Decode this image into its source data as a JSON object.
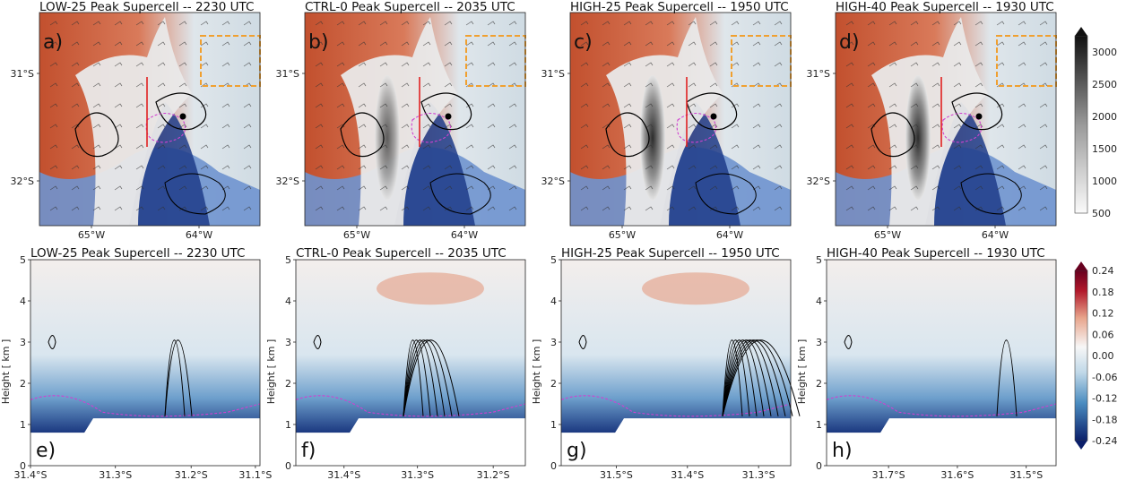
{
  "figure": {
    "top_row_titles": [
      "LOW-25 Peak Supercell -- 2230 UTC",
      "CTRL-0 Peak Supercell -- 2035 UTC",
      "HIGH-25 Peak Supercell -- 1950 UTC",
      "HIGH-40 Peak Supercell -- 1930 UTC"
    ],
    "bottom_row_titles": [
      "LOW-25 Peak Supercell -- 2230 UTC",
      "CTRL-0 Peak Supercell -- 2035 UTC",
      "HIGH-25 Peak Supercell -- 1950 UTC",
      "HIGH-40 Peak Supercell -- 1930 UTC"
    ],
    "top_panel_letters": [
      "a)",
      "b)",
      "c)",
      "d)"
    ],
    "bottom_panel_letters": [
      "e)",
      "f)",
      "g)",
      "h)"
    ],
    "colors": {
      "warm": "#c2502e",
      "cool_light": "#dde6ec",
      "blue_dark": "#1f3c8a",
      "blue_mid": "#4a6fc0",
      "highlight_box": "#f0a030",
      "section_line": "#e02020",
      "dashed_contour": "#d040d0"
    }
  },
  "chart_data": [
    {
      "type": "heatmap",
      "panel": "a)",
      "title": "LOW-25 Peak Supercell -- 2230 UTC",
      "xticks": [
        "65°W",
        "64°W"
      ],
      "yticks": [
        "31°S",
        "32°S"
      ]
    },
    {
      "type": "heatmap",
      "panel": "b)",
      "title": "CTRL-0 Peak Supercell -- 2035 UTC",
      "xticks": [
        "65°W",
        "64°W"
      ],
      "yticks": [
        "31°S",
        "32°S"
      ]
    },
    {
      "type": "heatmap",
      "panel": "c)",
      "title": "HIGH-25 Peak Supercell -- 1950 UTC",
      "xticks": [
        "65°W",
        "64°W"
      ],
      "yticks": [
        "31°S",
        "32°S"
      ]
    },
    {
      "type": "heatmap",
      "panel": "d)",
      "title": "HIGH-40 Peak Supercell -- 1930 UTC",
      "xticks": [
        "65°W",
        "64°W"
      ],
      "yticks": [
        "31°S",
        "32°S"
      ]
    },
    {
      "type": "heatmap",
      "panel": "e)",
      "title": "LOW-25 Peak Supercell -- 2230 UTC",
      "ylabel": "Height [ km ]",
      "ylim": [
        0,
        5
      ],
      "yticks": [
        "0",
        "1",
        "2",
        "3",
        "4",
        "5"
      ],
      "xticks": [
        "31.4°S",
        "31.3°S",
        "31.2°S",
        "31.1°S"
      ]
    },
    {
      "type": "heatmap",
      "panel": "f)",
      "title": "CTRL-0 Peak Supercell -- 2035 UTC",
      "ylabel": "Height [ km ]",
      "ylim": [
        0,
        5
      ],
      "yticks": [
        "0",
        "1",
        "2",
        "3",
        "4",
        "5"
      ],
      "xticks": [
        "31.4°S",
        "31.3°S",
        "31.2°S"
      ]
    },
    {
      "type": "heatmap",
      "panel": "g)",
      "title": "HIGH-25 Peak Supercell -- 1950 UTC",
      "ylabel": "Height [ km ]",
      "ylim": [
        0,
        5
      ],
      "yticks": [
        "0",
        "1",
        "2",
        "3",
        "4",
        "5"
      ],
      "xticks": [
        "31.5°S",
        "31.4°S",
        "31.3°S"
      ]
    },
    {
      "type": "heatmap",
      "panel": "h)",
      "title": "HIGH-40 Peak Supercell -- 1930 UTC",
      "ylabel": "Height [ km ]",
      "ylim": [
        0,
        5
      ],
      "yticks": [
        "0",
        "1",
        "2",
        "3",
        "4",
        "5"
      ],
      "xticks": [
        "31.7°S",
        "31.6°S",
        "31.5°S"
      ]
    },
    {
      "type": "colorbar",
      "panel": "top-colorbar",
      "ticks": [
        "3000",
        "2500",
        "2000",
        "1500",
        "1000",
        "500"
      ],
      "values": [
        3000,
        2500,
        2000,
        1500,
        1000,
        500
      ]
    },
    {
      "type": "colorbar",
      "panel": "bottom-colorbar",
      "ticks": [
        "0.24",
        "0.18",
        "0.12",
        "0.06",
        "0.00",
        "-0.06",
        "-0.12",
        "-0.18",
        "-0.24"
      ],
      "values": [
        0.24,
        0.18,
        0.12,
        0.06,
        0.0,
        -0.06,
        -0.12,
        -0.18,
        -0.24
      ]
    }
  ]
}
